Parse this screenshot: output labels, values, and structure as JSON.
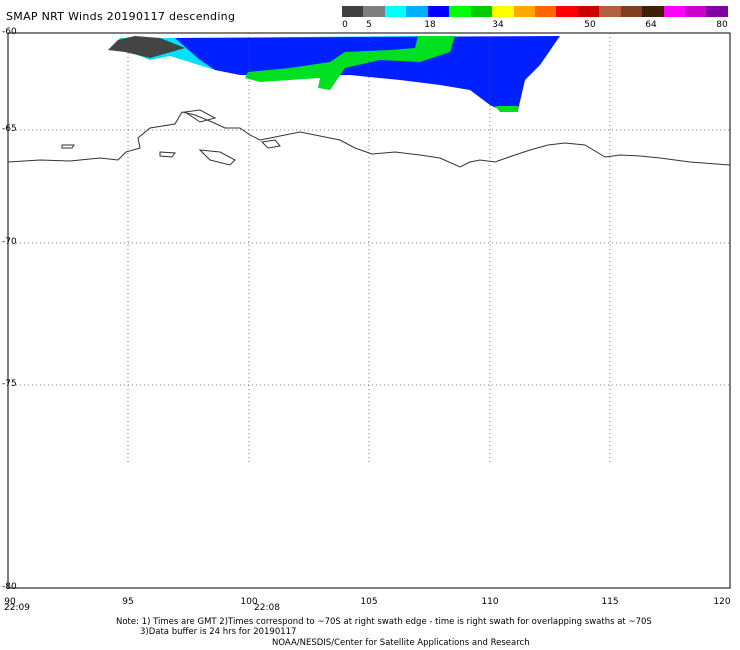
{
  "title": "SMAP NRT Winds  20190117 descending",
  "colorbar": {
    "labels": [
      "0",
      "5",
      "18",
      "34",
      "50",
      "64",
      "80"
    ],
    "colors": [
      "#404040",
      "#7f7f7f",
      "#00ffff",
      "#00b0ff",
      "#0000ff",
      "#00ff00",
      "#00cc00",
      "#ffff00",
      "#ffaa00",
      "#ff6600",
      "#ff0000",
      "#cc0000",
      "#b06040",
      "#804020",
      "#402000",
      "#ff00ff",
      "#cc00cc",
      "#8000a0"
    ]
  },
  "lat_ticks": [
    "-60",
    "-65",
    "-70",
    "-75",
    "-80"
  ],
  "lon_ticks": [
    "90",
    "95",
    "100",
    "105",
    "110",
    "115",
    "120"
  ],
  "swath_times": [
    "22:09",
    "22:08"
  ],
  "note_line1": "Note: 1) Times are GMT 2)Times correspond to ~70S at right swath edge - time is right swath for overlapping swaths at ~70S",
  "note_line2": "3)Data buffer is 24 hrs for 20190117",
  "credit": "NOAA/NESDIS/Center for Satellite Applications and Research"
}
